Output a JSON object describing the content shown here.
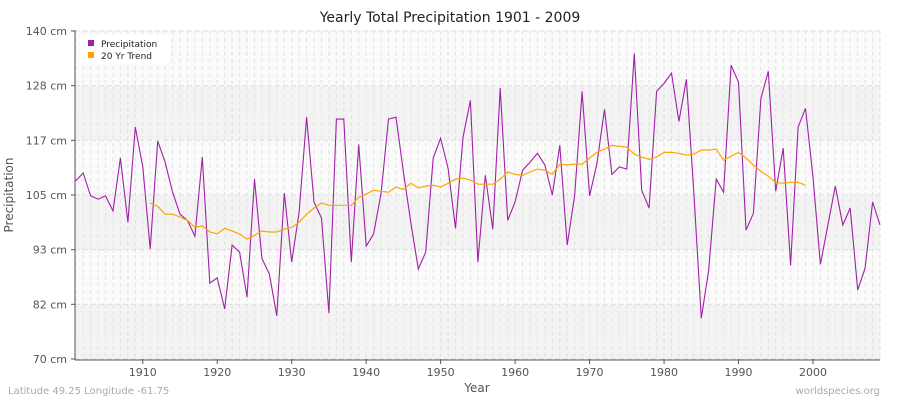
{
  "chart_data": {
    "type": "line",
    "title": "Yearly Total Precipitation 1901 - 2009",
    "xlabel": "Year",
    "ylabel": "Precipitation",
    "xlim": [
      1900.9,
      2009
    ],
    "ylim": [
      70,
      140
    ],
    "x_ticks": [
      1910,
      1920,
      1930,
      1940,
      1950,
      1960,
      1970,
      1980,
      1990,
      2000
    ],
    "y_ticks": [
      {
        "value": 70,
        "label": "70 cm"
      },
      {
        "value": 81.67,
        "label": "82 cm"
      },
      {
        "value": 93.33,
        "label": "93 cm"
      },
      {
        "value": 105,
        "label": "105 cm"
      },
      {
        "value": 116.67,
        "label": "117 cm"
      },
      {
        "value": 128.33,
        "label": "128 cm"
      },
      {
        "value": 140,
        "label": "140 cm"
      }
    ],
    "grid": true,
    "legend_position": "top-left",
    "series": [
      {
        "name": "Precipitation",
        "color": "#a020a8",
        "x_start": 1901,
        "values": [
          108.0,
          109.7,
          104.8,
          104.1,
          104.8,
          101.6,
          112.9,
          99.2,
          119.5,
          111.0,
          93.5,
          116.5,
          112.0,
          105.6,
          100.9,
          99.6,
          96.2,
          113.1,
          86.2,
          87.3,
          80.7,
          94.3,
          92.8,
          83.2,
          108.4,
          91.5,
          88.1,
          79.2,
          105.4,
          90.7,
          101.3,
          121.6,
          103.5,
          100.1,
          79.8,
          121.2,
          121.2,
          90.7,
          115.8,
          94.1,
          96.7,
          105.4,
          121.2,
          121.6,
          109.9,
          99.0,
          89.2,
          92.8,
          112.9,
          117.1,
          110.7,
          97.9,
          117.3,
          125.2,
          90.7,
          109.2,
          97.7,
          127.8,
          99.6,
          103.5,
          110.3,
          112.0,
          113.9,
          111.4,
          105.0,
          115.6,
          94.3,
          105.0,
          127.1,
          104.8,
          111.8,
          123.3,
          109.4,
          111.0,
          110.5,
          135.2,
          106.0,
          102.2,
          127.1,
          128.8,
          131.0,
          120.7,
          129.7,
          105.6,
          78.7,
          89.0,
          108.4,
          105.6,
          132.7,
          129.1,
          97.5,
          101.1,
          125.6,
          131.4,
          105.8,
          115.0,
          90.0,
          119.5,
          123.5,
          108.8,
          90.2,
          98.6,
          106.9,
          98.6,
          102.2,
          84.7,
          89.4,
          103.5,
          98.6
        ]
      },
      {
        "name": "20 Yr Trend",
        "color": "#ffa500",
        "x_start": 1911,
        "values": [
          103.3,
          102.6,
          100.9,
          100.9,
          100.3,
          99.6,
          98.1,
          98.4,
          97.1,
          96.7,
          97.9,
          97.3,
          96.7,
          95.6,
          96.4,
          97.3,
          97.1,
          97.1,
          97.7,
          98.1,
          99.2,
          100.9,
          102.2,
          103.3,
          102.8,
          102.8,
          102.8,
          102.8,
          104.5,
          105.2,
          106.0,
          105.8,
          105.6,
          106.7,
          106.2,
          107.5,
          106.5,
          106.9,
          107.1,
          106.7,
          107.5,
          108.4,
          108.6,
          108.2,
          107.3,
          107.3,
          107.3,
          108.4,
          109.9,
          109.4,
          109.2,
          109.9,
          110.5,
          110.3,
          109.4,
          111.6,
          111.4,
          111.6,
          111.6,
          112.9,
          114.1,
          114.8,
          115.6,
          115.4,
          115.2,
          113.7,
          113.1,
          112.6,
          113.1,
          114.1,
          114.1,
          113.9,
          113.5,
          113.7,
          114.6,
          114.6,
          114.8,
          112.4,
          113.3,
          114.1,
          112.9,
          111.4,
          110.1,
          109.0,
          107.7,
          107.5,
          107.7,
          107.7,
          107.1
        ]
      }
    ]
  },
  "footer": {
    "location": "Latitude 49.25 Longitude -61.75",
    "source": "worldspecies.org"
  }
}
